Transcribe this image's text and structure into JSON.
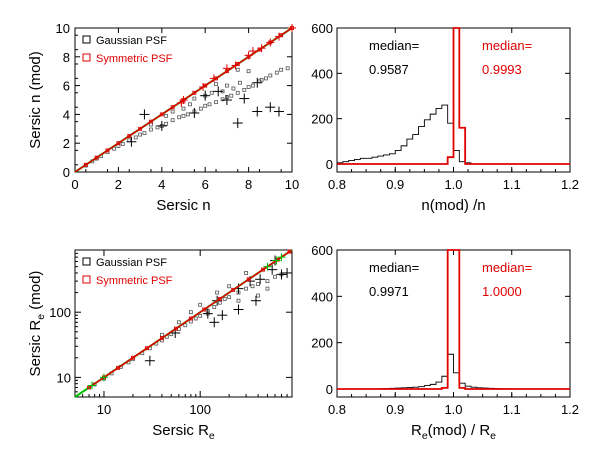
{
  "chart_data": [
    {
      "type": "scatter",
      "xlabel": "Sersic n",
      "ylabel": "Sersic n (mod)",
      "xlim": [
        0,
        10
      ],
      "ylim": [
        0,
        10
      ],
      "x_ticks": [
        0,
        2,
        4,
        6,
        8,
        10
      ],
      "y_ticks": [
        0,
        2,
        4,
        6,
        8,
        10
      ],
      "scale": "linear",
      "legend_position": "top-left",
      "legend": [
        "Gaussian PSF",
        "Symmetric PSF"
      ],
      "colors": {
        "gaussian": "#000000",
        "symmetric": "#e00000",
        "reference": "#00c000"
      },
      "reference_line": {
        "label": "",
        "points": [
          [
            0,
            0
          ],
          [
            10,
            10
          ]
        ]
      },
      "series": [
        {
          "name": "Gaussian PSF",
          "marker": "square",
          "relation": "y ≈ 0.72·x to 0.97·x (systematically below 1:1 for large n)",
          "points": [
            [
              0.5,
              0.45
            ],
            [
              0.8,
              0.74
            ],
            [
              1.0,
              0.93
            ],
            [
              1.2,
              1.1
            ],
            [
              1.5,
              1.38
            ],
            [
              1.8,
              1.62
            ],
            [
              2.0,
              1.8
            ],
            [
              2.2,
              1.95
            ],
            [
              2.5,
              2.2
            ],
            [
              2.8,
              2.4
            ],
            [
              3.0,
              2.6
            ],
            [
              3.2,
              2.7
            ],
            [
              3.5,
              2.95
            ],
            [
              3.8,
              3.1
            ],
            [
              4.0,
              3.2
            ],
            [
              4.2,
              3.35
            ],
            [
              4.5,
              3.6
            ],
            [
              4.8,
              3.8
            ],
            [
              5.0,
              3.9
            ],
            [
              5.2,
              4.0
            ],
            [
              5.5,
              4.2
            ],
            [
              5.8,
              4.4
            ],
            [
              6.0,
              4.6
            ],
            [
              6.2,
              4.7
            ],
            [
              6.5,
              4.85
            ],
            [
              6.8,
              5.05
            ],
            [
              7.0,
              5.2
            ],
            [
              7.2,
              5.3
            ],
            [
              7.5,
              5.5
            ],
            [
              7.8,
              5.7
            ],
            [
              8.0,
              5.9
            ],
            [
              8.2,
              6.0
            ],
            [
              8.5,
              6.3
            ],
            [
              8.8,
              6.5
            ],
            [
              9.0,
              6.7
            ],
            [
              9.3,
              6.9
            ],
            [
              9.5,
              7.1
            ],
            [
              9.8,
              7.2
            ],
            [
              3.5,
              3.3
            ],
            [
              4.5,
              4.2
            ],
            [
              5.5,
              5.1
            ],
            [
              6.5,
              6.1
            ],
            [
              7.5,
              7.1
            ],
            [
              5.0,
              4.4
            ],
            [
              6.0,
              5.3
            ],
            [
              7.0,
              6.0
            ],
            [
              8.0,
              7.0
            ],
            [
              6.8,
              5.6
            ],
            [
              7.6,
              6.2
            ],
            [
              8.6,
              6.4
            ],
            [
              4.2,
              3.9
            ],
            [
              5.3,
              4.7
            ],
            [
              6.3,
              5.5
            ],
            [
              7.3,
              5.8
            ]
          ]
        },
        {
          "name": "Symmetric PSF",
          "marker": "square",
          "relation": "y ≈ x",
          "points": [
            [
              0.5,
              0.5
            ],
            [
              1.0,
              1.0
            ],
            [
              1.5,
              1.5
            ],
            [
              2.0,
              2.0
            ],
            [
              2.5,
              2.5
            ],
            [
              3.0,
              3.0
            ],
            [
              3.5,
              3.5
            ],
            [
              4.0,
              4.0
            ],
            [
              4.5,
              4.5
            ],
            [
              5.0,
              5.0
            ],
            [
              5.5,
              5.5
            ],
            [
              6.0,
              6.0
            ],
            [
              6.5,
              6.5
            ],
            [
              7.0,
              7.0
            ],
            [
              7.5,
              7.5
            ],
            [
              8.0,
              8.0
            ],
            [
              8.5,
              8.5
            ],
            [
              9.0,
              9.0
            ],
            [
              9.5,
              9.5
            ],
            [
              10.0,
              10.0
            ]
          ]
        }
      ],
      "crosses": {
        "gaussian": [
          [
            3.2,
            4.0
          ],
          [
            4.0,
            3.2
          ],
          [
            6.0,
            5.3
          ],
          [
            6.6,
            5.6
          ],
          [
            7.0,
            5.0
          ],
          [
            7.8,
            5.1
          ],
          [
            8.4,
            4.2
          ],
          [
            9.0,
            4.5
          ],
          [
            9.4,
            4.2
          ],
          [
            8.4,
            6.2
          ],
          [
            5.5,
            4.1
          ],
          [
            7.5,
            3.4
          ],
          [
            2.6,
            2.1
          ]
        ],
        "symmetric": [
          [
            5.0,
            5.0
          ],
          [
            6.4,
            6.5
          ],
          [
            7.4,
            7.4
          ],
          [
            7.0,
            7.2
          ],
          [
            8.0,
            8.1
          ],
          [
            8.6,
            8.6
          ],
          [
            9.0,
            9.0
          ],
          [
            9.4,
            9.4
          ],
          [
            10.0,
            10.0
          ],
          [
            8.2,
            8.4
          ],
          [
            5.9,
            5.9
          ],
          [
            4.9,
            4.8
          ]
        ]
      }
    },
    {
      "type": "histogram",
      "xlabel": "n(mod) /n",
      "ylabel": "",
      "xlim": [
        0.8,
        1.2
      ],
      "ylim": [
        0,
        600
      ],
      "x_ticks": [
        0.8,
        0.9,
        1.0,
        1.1,
        1.2
      ],
      "y_ticks": [
        0,
        200,
        400,
        600
      ],
      "annotations": [
        {
          "text": "median=",
          "value": "0.9587",
          "color": "#000000"
        },
        {
          "text": "median=",
          "value": "0.9993",
          "color": "#e00000"
        }
      ],
      "bin_edges": [
        0.8,
        0.81,
        0.82,
        0.83,
        0.84,
        0.85,
        0.86,
        0.87,
        0.88,
        0.89,
        0.9,
        0.91,
        0.92,
        0.93,
        0.94,
        0.95,
        0.96,
        0.97,
        0.98,
        0.99,
        1.0,
        1.01,
        1.02,
        1.03,
        1.04,
        1.05,
        1.06,
        1.07,
        1.08,
        1.09,
        1.1,
        1.11,
        1.12,
        1.13,
        1.14,
        1.15,
        1.16,
        1.17,
        1.18,
        1.19,
        1.2
      ],
      "series": [
        {
          "name": "Gaussian PSF",
          "color": "#000000",
          "counts": [
            5,
            10,
            15,
            20,
            25,
            25,
            30,
            35,
            40,
            45,
            60,
            80,
            110,
            130,
            165,
            195,
            220,
            245,
            260,
            180,
            60,
            10,
            5,
            0,
            0,
            0,
            0,
            0,
            0,
            0,
            0,
            0,
            0,
            0,
            0,
            0,
            0,
            0,
            0,
            0
          ]
        },
        {
          "name": "Symmetric PSF",
          "color": "#e00000",
          "counts": [
            0,
            0,
            0,
            0,
            0,
            0,
            0,
            0,
            0,
            0,
            0,
            0,
            0,
            0,
            0,
            0,
            0,
            0,
            0,
            30,
            600,
            160,
            0,
            0,
            0,
            0,
            0,
            0,
            0,
            0,
            0,
            0,
            0,
            0,
            0,
            0,
            0,
            0,
            0,
            0
          ]
        }
      ]
    },
    {
      "type": "scatter",
      "xlabel": "Sersic R_e",
      "ylabel": "Sersic R_e (mod)",
      "xlim": [
        5,
        900
      ],
      "ylim": [
        5,
        900
      ],
      "x_ticks": [
        10,
        100
      ],
      "y_ticks": [
        10,
        100
      ],
      "scale": "log",
      "legend_position": "top-left",
      "legend": [
        "Gaussian PSF",
        "Symmetric PSF"
      ],
      "reference_line": {
        "label": "",
        "points": [
          [
            5,
            5
          ],
          [
            900,
            900
          ]
        ]
      },
      "series": [
        {
          "name": "Gaussian PSF",
          "marker": "square",
          "relation": "y ≈ x with scatter to lower values at large R_e",
          "points": [
            [
              8,
              7.8
            ],
            [
              10,
              9.6
            ],
            [
              12,
              11.5
            ],
            [
              15,
              14.5
            ],
            [
              18,
              17
            ],
            [
              20,
              19
            ],
            [
              25,
              23.5
            ],
            [
              30,
              28
            ],
            [
              35,
              33
            ],
            [
              40,
              37
            ],
            [
              45,
              42
            ],
            [
              50,
              46
            ],
            [
              60,
              55
            ],
            [
              70,
              63
            ],
            [
              80,
              72
            ],
            [
              90,
              80
            ],
            [
              100,
              88
            ],
            [
              120,
              105
            ],
            [
              140,
              120
            ],
            [
              160,
              140
            ],
            [
              180,
              160
            ],
            [
              200,
              170
            ],
            [
              250,
              200
            ],
            [
              300,
              230
            ],
            [
              350,
              250
            ],
            [
              400,
              270
            ],
            [
              500,
              300
            ],
            [
              600,
              350
            ],
            [
              700,
              380
            ],
            [
              60,
              70
            ],
            [
              80,
              100
            ],
            [
              100,
              130
            ],
            [
              150,
              200
            ],
            [
              200,
              250
            ],
            [
              300,
              400
            ],
            [
              40,
              45
            ],
            [
              120,
              95
            ],
            [
              250,
              150
            ],
            [
              400,
              180
            ],
            [
              500,
              230
            ]
          ]
        },
        {
          "name": "Symmetric PSF",
          "marker": "square",
          "relation": "y ≈ x",
          "points": [
            [
              7,
              7
            ],
            [
              10,
              10
            ],
            [
              14,
              14
            ],
            [
              20,
              20
            ],
            [
              28,
              28
            ],
            [
              40,
              40
            ],
            [
              56,
              56
            ],
            [
              80,
              80
            ],
            [
              110,
              110
            ],
            [
              160,
              160
            ],
            [
              220,
              220
            ],
            [
              320,
              320
            ],
            [
              450,
              450
            ],
            [
              640,
              640
            ],
            [
              850,
              850
            ]
          ]
        }
      ],
      "crosses": {
        "gaussian": [
          [
            30,
            18
          ],
          [
            55,
            48
          ],
          [
            120,
            95
          ],
          [
            150,
            150
          ],
          [
            250,
            230
          ],
          [
            330,
            300
          ],
          [
            420,
            320
          ],
          [
            140,
            70
          ],
          [
            170,
            90
          ],
          [
            250,
            110
          ],
          [
            380,
            150
          ],
          [
            560,
            450
          ],
          [
            700,
            380
          ],
          [
            800,
            400
          ],
          [
            600,
            620
          ]
        ],
        "symmetric": [
          [
            7.5,
            7.5
          ],
          [
            10,
            10
          ],
          [
            500,
            500
          ],
          [
            620,
            620
          ],
          [
            700,
            700
          ]
        ]
      }
    },
    {
      "type": "histogram",
      "xlabel": "R_e(mod) / R_e",
      "ylabel": "",
      "xlim": [
        0.8,
        1.2
      ],
      "ylim": [
        0,
        600
      ],
      "x_ticks": [
        0.8,
        0.9,
        1.0,
        1.1,
        1.2
      ],
      "y_ticks": [
        0,
        200,
        400,
        600
      ],
      "annotations": [
        {
          "text": "median=",
          "value": "0.9971",
          "color": "#000000"
        },
        {
          "text": "median=",
          "value": "1.0000",
          "color": "#e00000"
        }
      ],
      "bin_edges": [
        0.8,
        0.81,
        0.82,
        0.83,
        0.84,
        0.85,
        0.86,
        0.87,
        0.88,
        0.89,
        0.9,
        0.91,
        0.92,
        0.93,
        0.94,
        0.95,
        0.96,
        0.97,
        0.98,
        0.99,
        1.0,
        1.01,
        1.02,
        1.03,
        1.04,
        1.05,
        1.06,
        1.07,
        1.08,
        1.09,
        1.1,
        1.11,
        1.12,
        1.13,
        1.14,
        1.15,
        1.16,
        1.17,
        1.18,
        1.19,
        1.2
      ],
      "series": [
        {
          "name": "Gaussian PSF",
          "color": "#000000",
          "counts": [
            0,
            0,
            0,
            0,
            0,
            0,
            0,
            1,
            2,
            3,
            4,
            5,
            6,
            8,
            10,
            15,
            20,
            30,
            55,
            150,
            70,
            25,
            12,
            8,
            5,
            4,
            3,
            2,
            1,
            1,
            0,
            0,
            0,
            0,
            0,
            0,
            0,
            0,
            0,
            0
          ]
        },
        {
          "name": "Symmetric PSF",
          "color": "#e00000",
          "counts": [
            0,
            0,
            0,
            0,
            0,
            0,
            0,
            0,
            0,
            0,
            0,
            0,
            0,
            0,
            0,
            0,
            0,
            0,
            5,
            600,
            600,
            5,
            0,
            0,
            0,
            0,
            0,
            0,
            0,
            0,
            0,
            0,
            0,
            0,
            0,
            0,
            0,
            0,
            0,
            0
          ]
        }
      ]
    }
  ]
}
